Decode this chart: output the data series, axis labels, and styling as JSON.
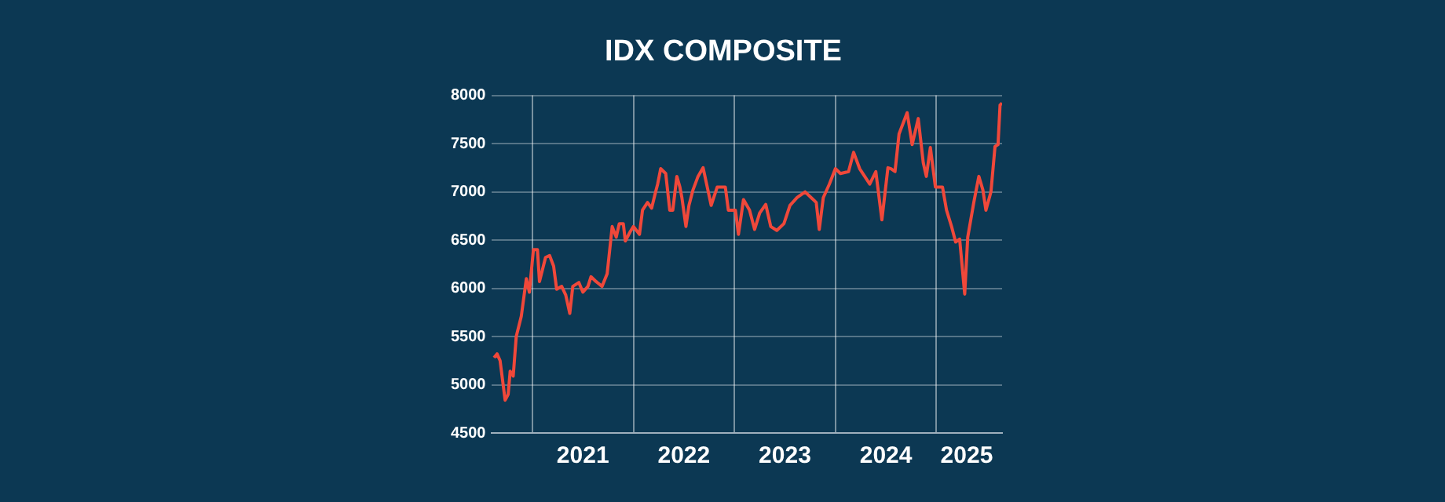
{
  "chart_data": {
    "type": "line",
    "title": "IDX COMPOSITE",
    "xlim": [
      2020.6,
      2025.65
    ],
    "xticks": [
      {
        "value": 2021,
        "label": null
      },
      {
        "value": 2021.5,
        "label": "2021"
      },
      {
        "value": 2022,
        "label": null
      },
      {
        "value": 2022.5,
        "label": "2022"
      },
      {
        "value": 2023,
        "label": null
      },
      {
        "value": 2023.5,
        "label": "2023"
      },
      {
        "value": 2024,
        "label": null
      },
      {
        "value": 2024.5,
        "label": "2024"
      },
      {
        "value": 2025,
        "label": null
      },
      {
        "value": 2025.3,
        "label": "2025"
      }
    ],
    "ylim": [
      4500,
      8000
    ],
    "yticks": [
      4500,
      5000,
      5500,
      6000,
      6500,
      7000,
      7500,
      8000
    ],
    "grid": true,
    "legend": false,
    "marker": "none",
    "line_style": "solid",
    "series": [
      {
        "color": "#f0483a",
        "x": [
          2020.62,
          2020.65,
          2020.68,
          2020.73,
          2020.76,
          2020.78,
          2020.81,
          2020.84,
          2020.89,
          2020.94,
          2020.97,
          2021.01,
          2021.05,
          2021.07,
          2021.13,
          2021.17,
          2021.21,
          2021.24,
          2021.29,
          2021.33,
          2021.37,
          2021.4,
          2021.46,
          2021.5,
          2021.55,
          2021.58,
          2021.63,
          2021.69,
          2021.74,
          2021.79,
          2021.83,
          2021.86,
          2021.9,
          2021.92,
          2021.97,
          2022.0,
          2022.06,
          2022.09,
          2022.14,
          2022.18,
          2022.22,
          2022.24,
          2022.27,
          2022.32,
          2022.36,
          2022.39,
          2022.43,
          2022.46,
          2022.48,
          2022.52,
          2022.55,
          2022.59,
          2022.64,
          2022.69,
          2022.77,
          2022.83,
          2022.91,
          2022.94,
          2023.01,
          2023.04,
          2023.09,
          2023.15,
          2023.2,
          2023.25,
          2023.31,
          2023.36,
          2023.42,
          2023.49,
          2023.55,
          2023.62,
          2023.7,
          2023.76,
          2023.81,
          2023.84,
          2023.88,
          2023.94,
          2024.0,
          2024.05,
          2024.13,
          2024.18,
          2024.24,
          2024.29,
          2024.34,
          2024.4,
          2024.46,
          2024.52,
          2024.55,
          2024.59,
          2024.63,
          2024.71,
          2024.76,
          2024.82,
          2024.87,
          2024.9,
          2024.94,
          2024.99,
          2025.06,
          2025.1,
          2025.15,
          2025.19,
          2025.23,
          2025.28,
          2025.31,
          2025.37,
          2025.42,
          2025.46,
          2025.49,
          2025.54,
          2025.58,
          2025.61,
          2025.63,
          2025.65
        ],
        "values": [
          5280,
          5320,
          5250,
          4840,
          4900,
          5140,
          5090,
          5500,
          5710,
          6100,
          5960,
          6400,
          6400,
          6070,
          6320,
          6340,
          6230,
          5990,
          6020,
          5930,
          5740,
          6020,
          6060,
          5960,
          6020,
          6120,
          6070,
          6020,
          6150,
          6640,
          6530,
          6670,
          6670,
          6490,
          6590,
          6640,
          6560,
          6810,
          6890,
          6830,
          7000,
          7080,
          7240,
          7190,
          6810,
          6810,
          7160,
          7050,
          6940,
          6640,
          6860,
          7020,
          7160,
          7250,
          6860,
          7050,
          7050,
          6810,
          6810,
          6560,
          6920,
          6810,
          6610,
          6780,
          6870,
          6640,
          6600,
          6670,
          6860,
          6940,
          7000,
          6940,
          6890,
          6610,
          6940,
          7080,
          7240,
          7190,
          7210,
          7410,
          7240,
          7160,
          7080,
          7210,
          6710,
          7250,
          7240,
          7210,
          7600,
          7820,
          7490,
          7760,
          7300,
          7160,
          7460,
          7050,
          7050,
          6810,
          6640,
          6480,
          6510,
          5940,
          6530,
          6890,
          7160,
          7020,
          6810,
          7000,
          7470,
          7490,
          7900,
          7920
        ]
      }
    ]
  }
}
